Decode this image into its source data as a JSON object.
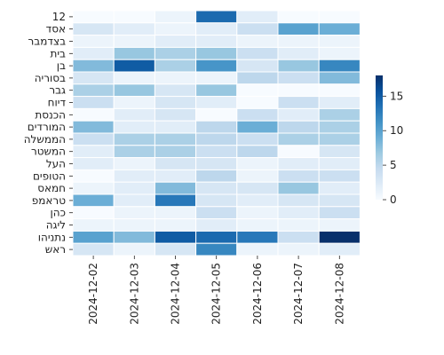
{
  "chart_data": {
    "type": "heatmap",
    "title": "",
    "xlabel": "",
    "ylabel": "",
    "x_categories": [
      "2024-12-02",
      "2024-12-03",
      "2024-12-04",
      "2024-12-05",
      "2024-12-06",
      "2024-12-07",
      "2024-12-08"
    ],
    "y_categories": [
      "12",
      "אסד",
      "בצדמבר",
      "בית",
      "בן",
      "בסוריה",
      "גבר",
      "דיוח",
      "הכנסת",
      "המורדים",
      "הממשלה",
      "המשטר",
      "העל",
      "הטופים",
      "חמאס",
      "טראמפ",
      "כהן",
      "ליגה",
      "נתניהו",
      "ראש"
    ],
    "values": [
      [
        0,
        0,
        1,
        14,
        2,
        0,
        0
      ],
      [
        3,
        2,
        1,
        2,
        4,
        10,
        9
      ],
      [
        1,
        1,
        2,
        2,
        1,
        1,
        1
      ],
      [
        2,
        7,
        6,
        7,
        4,
        2,
        1
      ],
      [
        8,
        15,
        6,
        11,
        3,
        7,
        12
      ],
      [
        3,
        1,
        1,
        1,
        5,
        4,
        8
      ],
      [
        6,
        7,
        3,
        7,
        0,
        0,
        0
      ],
      [
        4,
        1,
        3,
        2,
        0,
        4,
        2
      ],
      [
        0,
        2,
        3,
        0,
        4,
        2,
        6
      ],
      [
        8,
        2,
        2,
        5,
        9,
        5,
        6
      ],
      [
        4,
        6,
        6,
        5,
        4,
        6,
        6
      ],
      [
        2,
        6,
        6,
        4,
        5,
        0,
        3
      ],
      [
        2,
        1,
        3,
        3,
        1,
        2,
        2
      ],
      [
        0,
        2,
        2,
        5,
        1,
        4,
        4
      ],
      [
        1,
        2,
        8,
        3,
        3,
        7,
        2
      ],
      [
        9,
        2,
        13,
        3,
        2,
        3,
        3
      ],
      [
        0,
        1,
        1,
        4,
        1,
        2,
        4
      ],
      [
        1,
        1,
        1,
        2,
        1,
        1,
        1
      ],
      [
        10,
        8,
        15,
        14,
        13,
        4,
        18
      ],
      [
        3,
        1,
        3,
        12,
        1,
        1,
        2
      ]
    ],
    "colorbar": {
      "min": 0,
      "max": 18,
      "ticks": [
        0,
        5,
        10,
        15
      ]
    },
    "colormap": {
      "low": "#f7fbff",
      "high": "#08306b"
    },
    "legend": "right"
  }
}
